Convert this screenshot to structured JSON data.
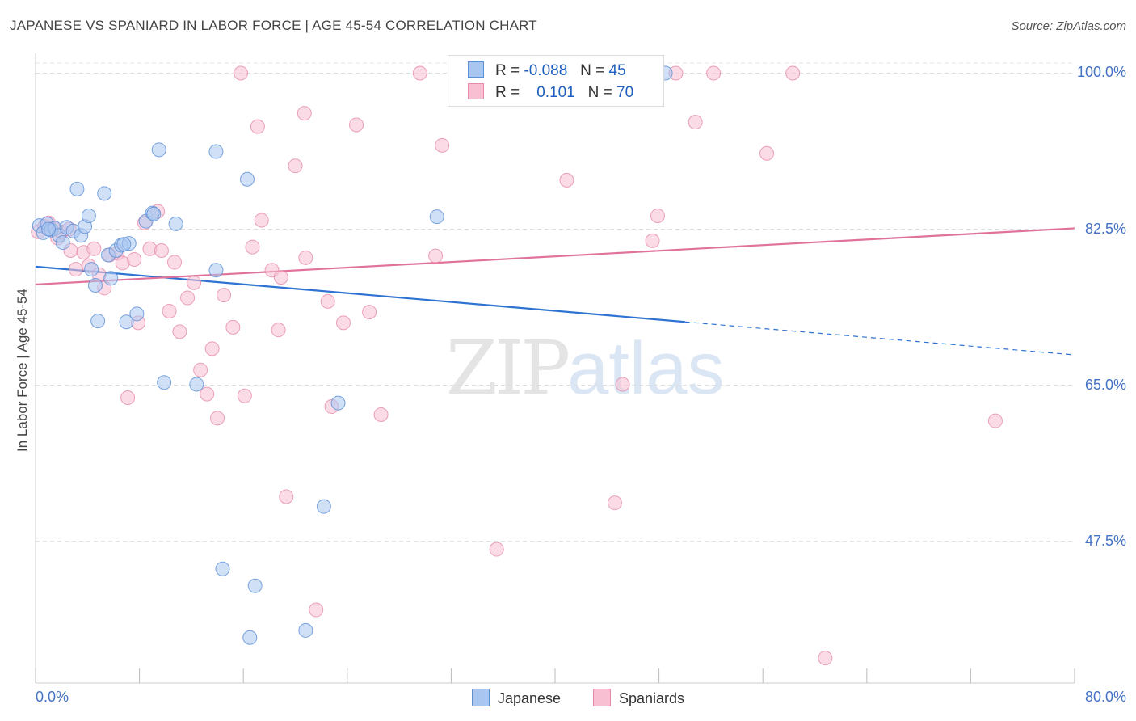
{
  "header": {
    "title": "JAPANESE VS SPANIARD IN LABOR FORCE | AGE 45-54 CORRELATION CHART",
    "source": "Source: ZipAtlas.com"
  },
  "watermark": {
    "zip": "ZIP",
    "atlas": "atlas"
  },
  "legend": {
    "rows": [
      {
        "r_label": "R =",
        "r_value": "-0.088",
        "n_label": "N =",
        "n_value": "45"
      },
      {
        "r_label": "R =",
        "r_value": "0.101",
        "n_label": "N =",
        "n_value": "70"
      }
    ]
  },
  "bottom_legend": {
    "japanese": "Japanese",
    "spaniards": "Spaniards"
  },
  "chart_data": {
    "type": "scatter",
    "title": "JAPANESE VS SPANIARD IN LABOR FORCE | AGE 45-54 CORRELATION CHART",
    "xlabel": "",
    "ylabel": "In Labor Force | Age 45-54",
    "xlim": [
      0,
      80
    ],
    "ylim": [
      31.6,
      102.4
    ],
    "x_tick_labels": [
      "0.0%",
      "80.0%"
    ],
    "y_ticks": [
      47.5,
      65.0,
      82.5,
      100.0
    ],
    "y_tick_labels": [
      "47.5%",
      "65.0%",
      "82.5%",
      "100.0%"
    ],
    "grid": true,
    "legend_position": "top-center",
    "colors": {
      "japanese_fill": "#a9c6f0",
      "japanese_stroke": "#5b8fd6",
      "japanese_line": "#2f73d2",
      "spaniards_fill": "#f8bfd2",
      "spaniards_stroke": "#e58ba9",
      "spaniards_line": "#e0739b",
      "axis_text": "#4472c4"
    },
    "series": [
      {
        "name": "Japanese",
        "r": -0.088,
        "n": 45,
        "trend": {
          "x0": 0.0,
          "y0": 78.3,
          "x1": 50.0,
          "y1": 72.1,
          "dash_x1": 80.0,
          "dash_y1": 68.4
        },
        "points": [
          [
            0.3,
            82.9
          ],
          [
            0.6,
            82.1
          ],
          [
            0.9,
            83.1
          ],
          [
            1.2,
            82.4
          ],
          [
            1.5,
            82.6
          ],
          [
            1.8,
            81.8
          ],
          [
            2.1,
            81.0
          ],
          [
            2.4,
            82.7
          ],
          [
            2.9,
            82.3
          ],
          [
            3.2,
            87.0
          ],
          [
            3.5,
            81.8
          ],
          [
            3.8,
            82.8
          ],
          [
            4.1,
            84.0
          ],
          [
            4.3,
            78.0
          ],
          [
            4.6,
            76.2
          ],
          [
            4.8,
            72.2
          ],
          [
            5.3,
            86.5
          ],
          [
            5.6,
            79.6
          ],
          [
            5.8,
            77.0
          ],
          [
            6.2,
            80.1
          ],
          [
            6.6,
            80.7
          ],
          [
            7.0,
            72.1
          ],
          [
            7.2,
            80.9
          ],
          [
            7.8,
            73.0
          ],
          [
            8.5,
            83.4
          ],
          [
            9.0,
            84.3
          ],
          [
            9.5,
            91.4
          ],
          [
            9.9,
            65.3
          ],
          [
            10.8,
            83.1
          ],
          [
            12.4,
            65.1
          ],
          [
            13.9,
            91.2
          ],
          [
            14.4,
            44.4
          ],
          [
            16.3,
            88.1
          ],
          [
            16.5,
            36.7
          ],
          [
            16.9,
            42.5
          ],
          [
            20.8,
            37.5
          ],
          [
            22.2,
            51.4
          ],
          [
            23.3,
            63.0
          ],
          [
            30.9,
            83.9
          ],
          [
            32.6,
            100.0
          ],
          [
            48.5,
            100.0
          ],
          [
            1.0,
            82.5
          ],
          [
            13.9,
            77.9
          ],
          [
            9.1,
            84.2
          ],
          [
            6.8,
            80.8
          ]
        ]
      },
      {
        "name": "Spaniards",
        "r": 0.101,
        "n": 70,
        "trend": {
          "x0": 0.0,
          "y0": 76.3,
          "x1": 80.0,
          "y1": 82.6
        },
        "points": [
          [
            0.2,
            82.2
          ],
          [
            0.7,
            82.8
          ],
          [
            1.0,
            83.2
          ],
          [
            1.4,
            82.6
          ],
          [
            1.7,
            81.5
          ],
          [
            2.0,
            82.2
          ],
          [
            2.6,
            82.5
          ],
          [
            2.7,
            80.1
          ],
          [
            3.1,
            78.0
          ],
          [
            3.7,
            79.9
          ],
          [
            4.1,
            78.4
          ],
          [
            4.5,
            80.3
          ],
          [
            4.9,
            77.4
          ],
          [
            5.3,
            75.9
          ],
          [
            5.7,
            79.6
          ],
          [
            6.3,
            79.8
          ],
          [
            6.7,
            78.7
          ],
          [
            7.1,
            63.6
          ],
          [
            7.6,
            79.1
          ],
          [
            7.9,
            72.0
          ],
          [
            8.4,
            83.2
          ],
          [
            8.8,
            80.3
          ],
          [
            9.4,
            84.5
          ],
          [
            9.7,
            80.1
          ],
          [
            10.3,
            73.3
          ],
          [
            10.7,
            78.8
          ],
          [
            11.1,
            71.0
          ],
          [
            11.7,
            74.8
          ],
          [
            12.2,
            76.5
          ],
          [
            12.7,
            66.7
          ],
          [
            13.2,
            64.0
          ],
          [
            13.6,
            69.1
          ],
          [
            14.0,
            61.3
          ],
          [
            14.5,
            75.1
          ],
          [
            15.2,
            71.5
          ],
          [
            15.8,
            100.0
          ],
          [
            16.1,
            63.8
          ],
          [
            16.7,
            80.5
          ],
          [
            17.1,
            94.0
          ],
          [
            17.4,
            83.5
          ],
          [
            18.2,
            77.9
          ],
          [
            18.7,
            71.2
          ],
          [
            18.9,
            77.1
          ],
          [
            19.3,
            52.5
          ],
          [
            20.0,
            89.6
          ],
          [
            20.7,
            95.5
          ],
          [
            20.8,
            79.3
          ],
          [
            21.6,
            39.8
          ],
          [
            22.5,
            74.4
          ],
          [
            22.8,
            62.6
          ],
          [
            23.7,
            72.0
          ],
          [
            24.7,
            94.2
          ],
          [
            25.7,
            73.2
          ],
          [
            26.6,
            61.7
          ],
          [
            29.6,
            100.0
          ],
          [
            30.8,
            79.5
          ],
          [
            31.3,
            91.9
          ],
          [
            35.5,
            46.6
          ],
          [
            40.9,
            88.0
          ],
          [
            44.6,
            51.8
          ],
          [
            45.2,
            65.1
          ],
          [
            47.5,
            81.2
          ],
          [
            47.9,
            84.0
          ],
          [
            49.3,
            100.0
          ],
          [
            50.8,
            94.5
          ],
          [
            52.2,
            100.0
          ],
          [
            56.3,
            91.0
          ],
          [
            58.3,
            100.0
          ],
          [
            60.8,
            34.4
          ],
          [
            73.9,
            61.0
          ]
        ]
      }
    ]
  }
}
